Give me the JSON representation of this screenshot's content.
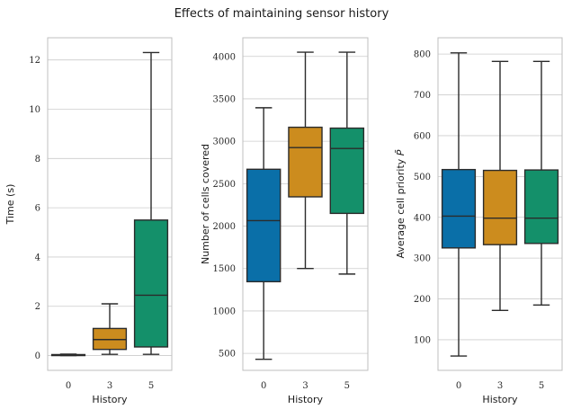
{
  "figure": {
    "title": "Effects of maintaining sensor history"
  },
  "chart_data": [
    {
      "type": "box",
      "title": "",
      "xlabel": "History",
      "ylabel": "Time (s)",
      "categories": [
        "0",
        "3",
        "5"
      ],
      "yticks": [
        "0",
        "2",
        "4",
        "6",
        "8",
        "10",
        "12"
      ],
      "ylim": [
        -0.6,
        12.9
      ],
      "colors": [
        "#0a6fa8",
        "#cc8c1e",
        "#14906a"
      ],
      "grid": true,
      "boxes": [
        {
          "whislo": 0.0,
          "q1": 0.0,
          "med": 0.02,
          "q3": 0.04,
          "whishi": 0.06
        },
        {
          "whislo": 0.05,
          "q1": 0.25,
          "med": 0.65,
          "q3": 1.1,
          "whishi": 2.1
        },
        {
          "whislo": 0.05,
          "q1": 0.35,
          "med": 2.45,
          "q3": 5.5,
          "whishi": 12.3
        }
      ]
    },
    {
      "type": "box",
      "title": "",
      "xlabel": "History",
      "ylabel": "Number of cells covered",
      "categories": [
        "0",
        "3",
        "5"
      ],
      "yticks": [
        "500",
        "1000",
        "1500",
        "2000",
        "2500",
        "3000",
        "3500",
        "4000"
      ],
      "ylim": [
        300,
        4220
      ],
      "colors": [
        "#0a6fa8",
        "#cc8c1e",
        "#14906a"
      ],
      "grid": true,
      "boxes": [
        {
          "whislo": 430,
          "q1": 1345,
          "med": 2065,
          "q3": 2670,
          "whishi": 3395
        },
        {
          "whislo": 1500,
          "q1": 2345,
          "med": 2925,
          "q3": 3165,
          "whishi": 4050
        },
        {
          "whislo": 1435,
          "q1": 2150,
          "med": 2915,
          "q3": 3155,
          "whishi": 4050
        }
      ]
    },
    {
      "type": "box",
      "title": "",
      "xlabel": "History",
      "ylabel": "Average cell priority",
      "ylabel_symbol": "P̄",
      "categories": [
        "0",
        "3",
        "5"
      ],
      "yticks": [
        "100",
        "200",
        "300",
        "400",
        "500",
        "600",
        "700",
        "800"
      ],
      "ylim": [
        25,
        840
      ],
      "colors": [
        "#0a6fa8",
        "#cc8c1e",
        "#14906a"
      ],
      "grid": true,
      "boxes": [
        {
          "whislo": 60,
          "q1": 325,
          "med": 403,
          "q3": 517,
          "whishi": 803
        },
        {
          "whislo": 172,
          "q1": 333,
          "med": 398,
          "q3": 515,
          "whishi": 782
        },
        {
          "whislo": 185,
          "q1": 336,
          "med": 398,
          "q3": 516,
          "whishi": 782
        }
      ]
    }
  ]
}
